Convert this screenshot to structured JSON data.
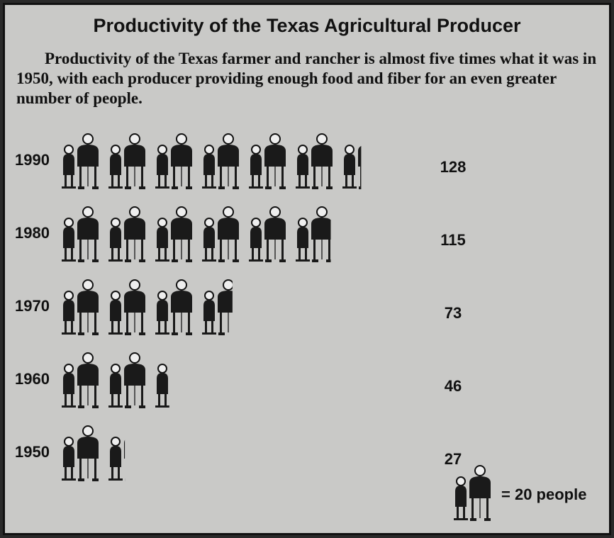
{
  "chart_data": {
    "type": "pictograph",
    "title": "Productivity of  the Texas Agricultural Producer",
    "subtitle": "Productivity of the Texas farmer and rancher is almost five times what it was in 1950, with each producer providing enough food and fiber for an even greater number of people.",
    "categories": [
      "1990",
      "1980",
      "1970",
      "1960",
      "1950"
    ],
    "values": [
      128,
      115,
      73,
      46,
      27
    ],
    "unit": {
      "value": 20,
      "label": "= 20 people"
    },
    "color": "#1a1a1a"
  }
}
